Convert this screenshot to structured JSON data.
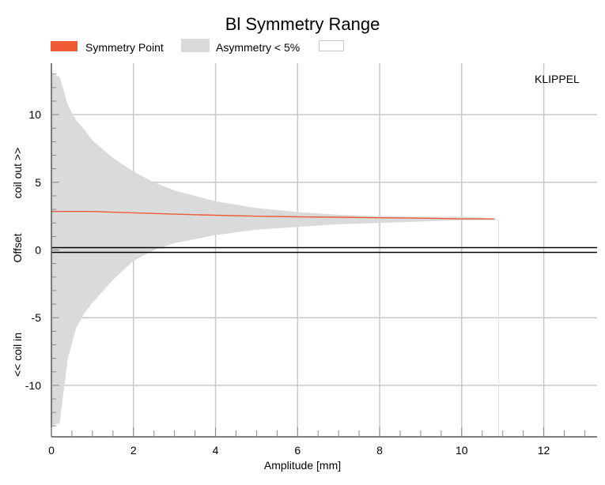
{
  "chart_data": {
    "type": "area",
    "title": "Bl Symmetry Range",
    "xlabel": "Amplitude [mm]",
    "ylabel_parts": [
      "<< coil in",
      "Offset",
      "coil out >>"
    ],
    "brand": "KLIPPEL",
    "xlim": [
      0,
      13.3
    ],
    "ylim": [
      -13.8,
      13.8
    ],
    "x_ticks": [
      0,
      2,
      4,
      6,
      8,
      10,
      12
    ],
    "y_ticks": [
      -10,
      -5,
      0,
      5,
      10
    ],
    "grid": true,
    "legend_position": "top-left",
    "legend": [
      {
        "label": "Symmetry Point",
        "color": "#f05a35"
      },
      {
        "label": "Asymmetry < 5%",
        "color": "#d9dadc"
      },
      {
        "label": "",
        "color": "#ffffff"
      }
    ],
    "series": [
      {
        "name": "Asymmetry < 5%",
        "kind": "band",
        "x": [
          0,
          0.2,
          0.4,
          0.6,
          0.8,
          1.0,
          1.5,
          2.0,
          2.5,
          3.0,
          4.0,
          5.0,
          6.0,
          7.0,
          8.0,
          9.0,
          10.0,
          10.5,
          10.9
        ],
        "upper": [
          13.0,
          12.8,
          10.7,
          9.6,
          8.9,
          8.1,
          6.8,
          5.8,
          5.0,
          4.4,
          3.6,
          3.1,
          2.8,
          2.6,
          2.5,
          2.45,
          2.45,
          2.4,
          2.2
        ],
        "lower": [
          -13.0,
          -12.8,
          -8.0,
          -5.8,
          -4.7,
          -3.9,
          -2.2,
          -0.8,
          0.0,
          0.5,
          1.1,
          1.5,
          1.7,
          1.9,
          2.0,
          2.1,
          2.2,
          2.2,
          2.2
        ]
      },
      {
        "name": "Symmetry Point",
        "kind": "line",
        "x": [
          0,
          1,
          2,
          3,
          4,
          5,
          6,
          7,
          8,
          9,
          10,
          10.8
        ],
        "y": [
          2.85,
          2.85,
          2.75,
          2.65,
          2.57,
          2.5,
          2.45,
          2.42,
          2.38,
          2.35,
          2.3,
          2.3
        ]
      }
    ]
  }
}
